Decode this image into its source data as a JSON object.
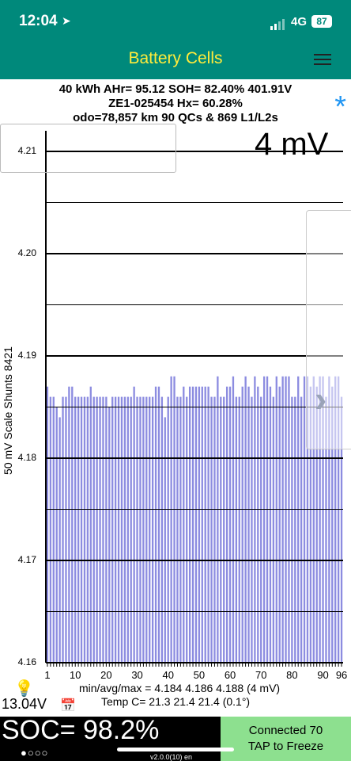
{
  "status_bar": {
    "time": "12:04",
    "network": "4G",
    "battery": "87"
  },
  "header": {
    "title": "Battery Cells"
  },
  "info": {
    "line1": "40 kWh  AHr= 95.12  SOH= 82.40%   401.91V",
    "line2": "ZE1-025454   Hx= 60.28%",
    "line3": "odo=78,857 km 90 QCs & 869 L1/L2s"
  },
  "chart_scale_label": "4 mV",
  "vertical_label": "50 mV Scale   Shunts 8421",
  "chart_data": {
    "type": "bar",
    "ylim": [
      4.16,
      4.21
    ],
    "y_ticks": [
      "4.21",
      "4.20",
      "4.19",
      "4.18",
      "4.17",
      "4.16"
    ],
    "x_ticks": [
      "1",
      "10",
      "20",
      "30",
      "40",
      "50",
      "60",
      "70",
      "80",
      "90",
      "96"
    ],
    "values": [
      4.187,
      4.186,
      4.186,
      4.185,
      4.184,
      4.186,
      4.186,
      4.187,
      4.187,
      4.186,
      4.186,
      4.186,
      4.186,
      4.186,
      4.187,
      4.186,
      4.186,
      4.186,
      4.186,
      4.186,
      4.185,
      4.186,
      4.186,
      4.186,
      4.186,
      4.186,
      4.186,
      4.186,
      4.187,
      4.186,
      4.186,
      4.186,
      4.186,
      4.186,
      4.186,
      4.187,
      4.187,
      4.186,
      4.184,
      4.186,
      4.188,
      4.188,
      4.186,
      4.186,
      4.187,
      4.186,
      4.187,
      4.187,
      4.187,
      4.187,
      4.187,
      4.187,
      4.187,
      4.186,
      4.186,
      4.188,
      4.186,
      4.186,
      4.187,
      4.187,
      4.188,
      4.186,
      4.186,
      4.187,
      4.188,
      4.187,
      4.186,
      4.188,
      4.187,
      4.186,
      4.188,
      4.188,
      4.187,
      4.186,
      4.188,
      4.187,
      4.188,
      4.188,
      4.188,
      4.186,
      4.186,
      4.188,
      4.186,
      4.188,
      4.188,
      4.187,
      4.188,
      4.187,
      4.188,
      4.188,
      4.186,
      4.188,
      4.187,
      4.188,
      4.188,
      4.186
    ],
    "bar_color": "#8c8ce0"
  },
  "stats": {
    "minavgmax": "min/avg/max = 4.184 4.186 4.188  (4 mV)",
    "temp": "Temp C= 21.3  21.4  21.4  (0.1°)"
  },
  "aux_voltage": "13.04V",
  "soc": "SOC= 98.2%",
  "page_dots": "●○○○",
  "connection": {
    "line1": "Connected 70",
    "line2": "TAP to Freeze"
  },
  "version": "v2.0.0(10) en",
  "colors": {
    "header": "#00897b",
    "title": "#ffeb3b",
    "star": "#2196f3",
    "connected_bg": "#8de08f"
  }
}
